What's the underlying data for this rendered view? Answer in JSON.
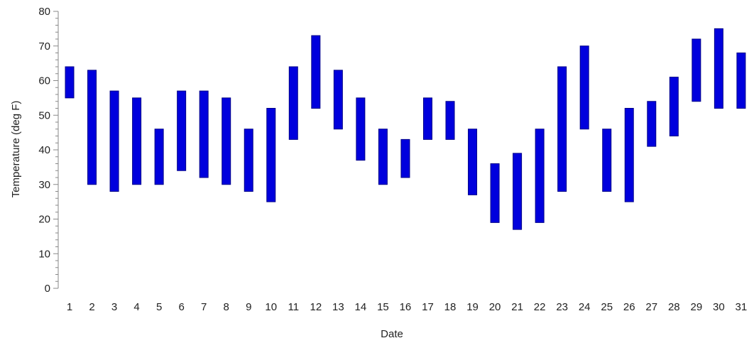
{
  "chart_data": {
    "type": "range-bar",
    "title": "",
    "xlabel": "Date",
    "ylabel": "Temperature (deg F)",
    "ylim": [
      0,
      80
    ],
    "yticks": [
      0,
      10,
      20,
      30,
      40,
      50,
      60,
      70,
      80
    ],
    "minor_tick_step": 2,
    "grid": false,
    "bar_color": "#0000dd",
    "bar_edge_color": "#000088",
    "categories": [
      "1",
      "2",
      "3",
      "4",
      "5",
      "6",
      "7",
      "8",
      "9",
      "10",
      "11",
      "12",
      "13",
      "14",
      "15",
      "16",
      "17",
      "18",
      "19",
      "20",
      "21",
      "22",
      "23",
      "24",
      "25",
      "26",
      "27",
      "28",
      "29",
      "30",
      "31"
    ],
    "series": [
      {
        "low": [
          55,
          30,
          28,
          30,
          30,
          34,
          32,
          30,
          28,
          25,
          43,
          52,
          46,
          37,
          30,
          32,
          43,
          43,
          27,
          19,
          17,
          19,
          28,
          46,
          28,
          25,
          41,
          44,
          54,
          52,
          52
        ],
        "high": [
          64,
          63,
          57,
          55,
          46,
          57,
          57,
          55,
          46,
          52,
          64,
          73,
          63,
          55,
          46,
          43,
          55,
          54,
          46,
          36,
          39,
          46,
          64,
          70,
          46,
          52,
          54,
          61,
          72,
          75,
          68
        ]
      }
    ]
  }
}
